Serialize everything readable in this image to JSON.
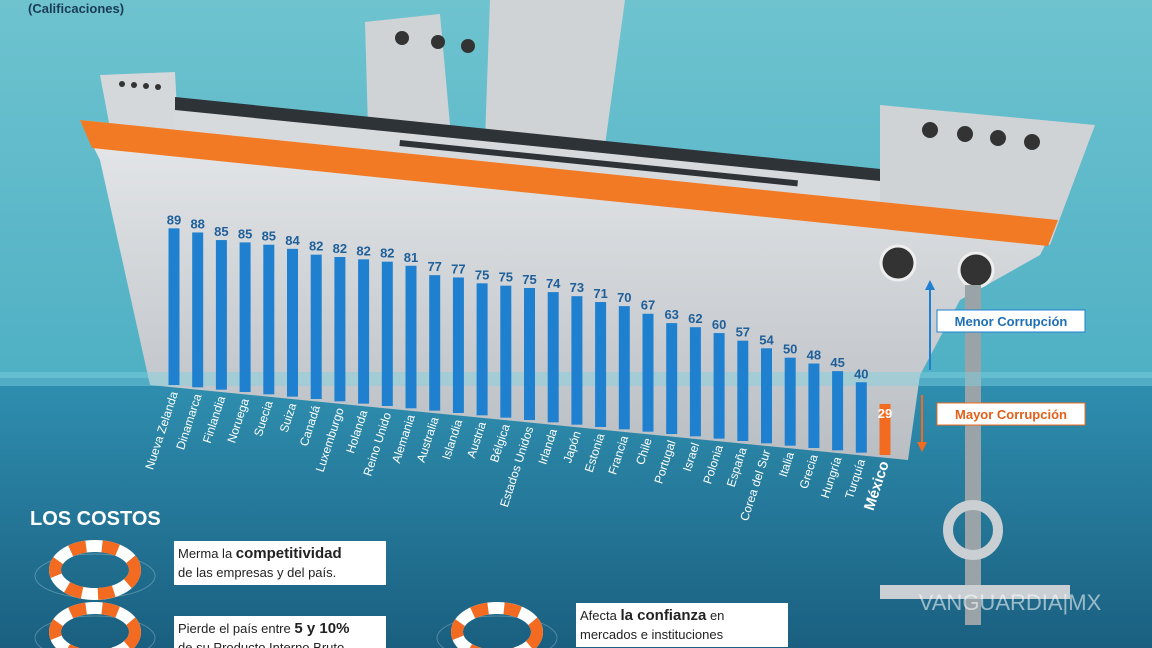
{
  "chart_data": {
    "type": "bar",
    "subtitle": "(Calificaciones)",
    "categories": [
      "Nueva Zelanda",
      "Dinamarca",
      "Finlandia",
      "Noruega",
      "Suecia",
      "Suiza",
      "Canadá",
      "Luxemburgo",
      "Holanda",
      "Reino Unido",
      "Alemania",
      "Australia",
      "Islandia",
      "Austria",
      "Bélgica",
      "Estados Unidos",
      "Irlanda",
      "Japón",
      "Estonia",
      "Francia",
      "Chile",
      "Portugal",
      "Israel",
      "Polonia",
      "España",
      "Corea del Sur",
      "Italia",
      "Grecia",
      "Hungría",
      "Turquía",
      "México"
    ],
    "values": [
      89,
      88,
      85,
      85,
      85,
      84,
      82,
      82,
      82,
      82,
      81,
      77,
      77,
      75,
      75,
      75,
      74,
      73,
      71,
      70,
      67,
      63,
      62,
      60,
      57,
      54,
      50,
      48,
      45,
      40,
      29
    ],
    "bar_colors": [
      "#1f80d0",
      "#1f80d0",
      "#1f80d0",
      "#1f80d0",
      "#1f80d0",
      "#1f80d0",
      "#1f80d0",
      "#1f80d0",
      "#1f80d0",
      "#1f80d0",
      "#1f80d0",
      "#1f80d0",
      "#1f80d0",
      "#1f80d0",
      "#1f80d0",
      "#1f80d0",
      "#1f80d0",
      "#1f80d0",
      "#1f80d0",
      "#1f80d0",
      "#1f80d0",
      "#1f80d0",
      "#1f80d0",
      "#1f80d0",
      "#1f80d0",
      "#1f80d0",
      "#1f80d0",
      "#1f80d0",
      "#1f80d0",
      "#1f80d0",
      "#f26b21"
    ],
    "annotations": {
      "less": "Menor Corrupción",
      "more": "Mayor Corrupción"
    }
  },
  "costs": {
    "title": "LOS COSTOS",
    "items": [
      {
        "before": "Merma la ",
        "bold": "competitividad",
        "after": "",
        "line2": "de las empresas y del país."
      },
      {
        "before": "Pierde el país entre ",
        "bold": "5 y 10%",
        "after": "",
        "line2": "de su Producto Interno Bruto"
      },
      {
        "before": "Afecta ",
        "bold": "la confianza",
        "after": " en",
        "line2": "mercados e instituciones"
      }
    ]
  },
  "watermark": "VANGUARDIA|MX"
}
